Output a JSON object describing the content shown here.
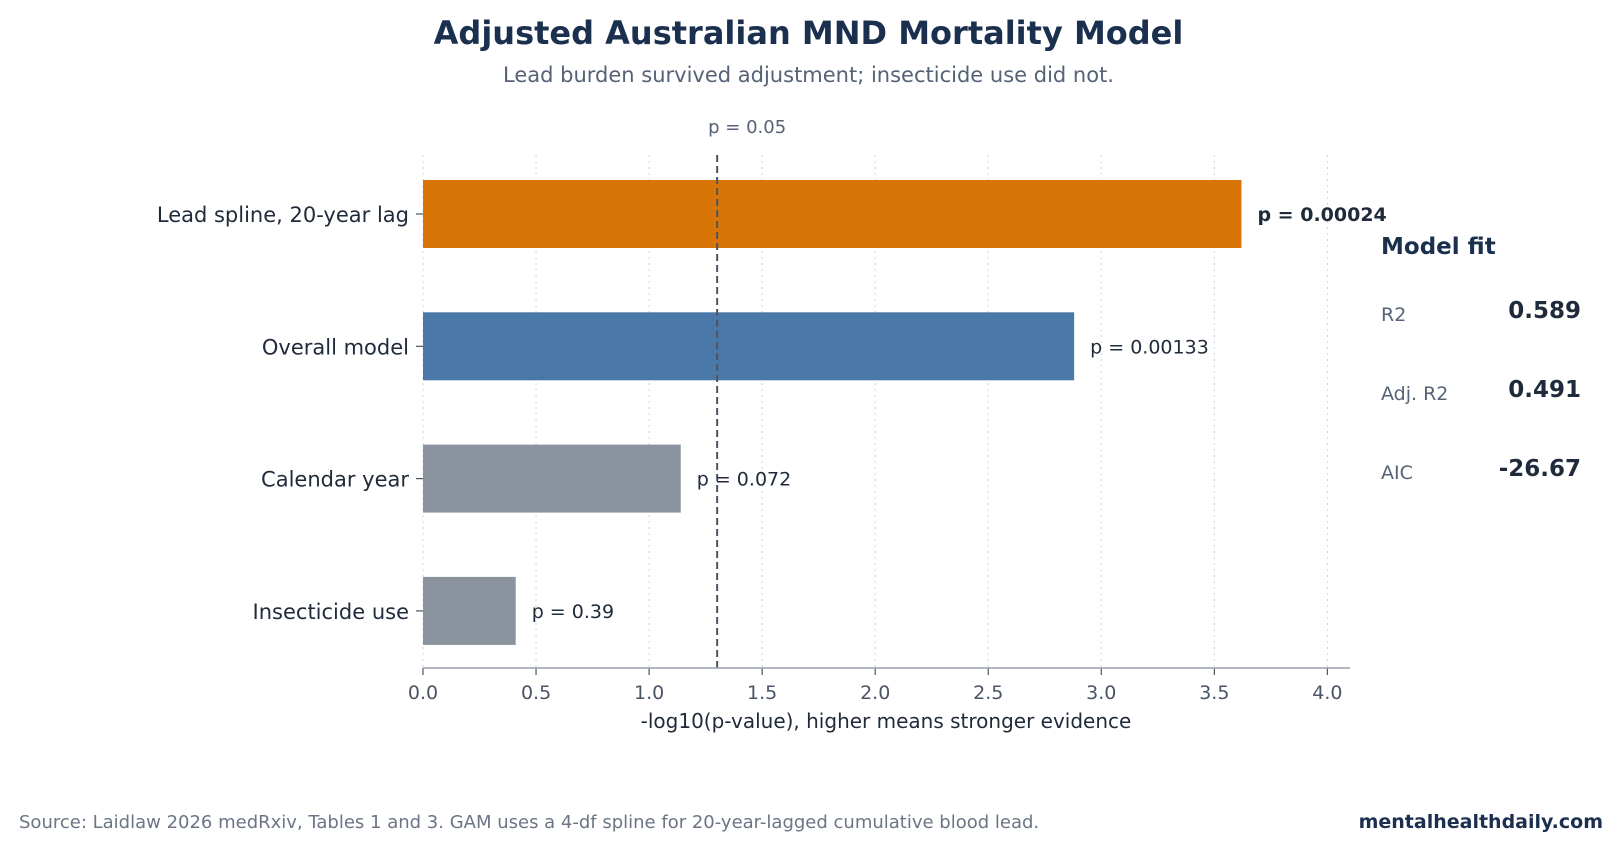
{
  "chart_data": {
    "type": "bar",
    "orientation": "horizontal",
    "title": "Adjusted Australian MND Mortality Model",
    "subtitle": "Lead burden survived adjustment; insecticide use did not.",
    "xlabel": "-log10(p-value), higher means stronger evidence",
    "xlim": [
      0,
      4.1
    ],
    "xticks": [
      "0.0",
      "0.5",
      "1.0",
      "1.5",
      "2.0",
      "2.5",
      "3.0",
      "3.5",
      "4.0"
    ],
    "grid": "vertical dotted",
    "reference_line": {
      "value": 1.301,
      "label": "p = 0.05"
    },
    "categories": [
      "Lead spline, 20-year lag",
      "Overall model",
      "Calendar year",
      "Insecticide use"
    ],
    "values": [
      3.62,
      2.88,
      1.14,
      0.41
    ],
    "bar_labels": [
      "p = 0.00024",
      "p = 0.00133",
      "p = 0.072",
      "p = 0.39"
    ],
    "bar_colors": [
      "#d97506",
      "#4a78a8",
      "#8a939e",
      "#8a939e"
    ]
  },
  "model_fit": {
    "title": "Model fit",
    "rows": [
      {
        "label": "R2",
        "value": "0.589"
      },
      {
        "label": "Adj. R2",
        "value": "0.491"
      },
      {
        "label": "AIC",
        "value": "-26.67"
      }
    ]
  },
  "footer": {
    "source": "Source: Laidlaw 2026 medRxiv, Tables 1 and 3. GAM uses a 4-df spline for 20-year-lagged cumulative blood lead.",
    "site": "mentalhealthdaily.com"
  }
}
